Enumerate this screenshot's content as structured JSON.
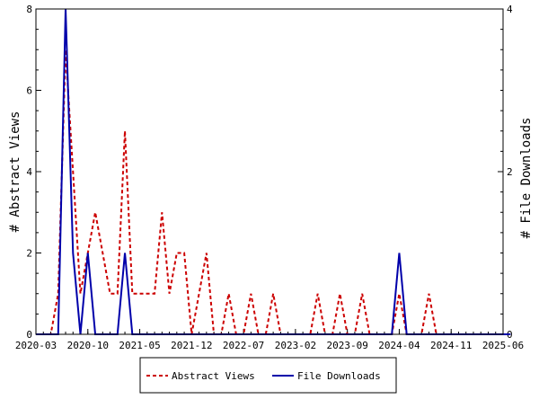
{
  "chart_data": {
    "type": "line",
    "x_tick_labels": [
      "2020-03",
      "2020-10",
      "2021-05",
      "2021-12",
      "2022-07",
      "2023-02",
      "2023-09",
      "2024-04",
      "2024-11",
      "2025-06"
    ],
    "x_start": "2020-03",
    "x_end": "2025-06",
    "left_axis": {
      "label": "# Abstract Views",
      "ylim": [
        0,
        8
      ],
      "ticks": [
        "0",
        "2",
        "4",
        "6",
        "8"
      ]
    },
    "right_axis": {
      "label": "# File Downloads",
      "ylim": [
        0,
        4
      ],
      "ticks": [
        "0",
        "2",
        "4"
      ]
    },
    "grid": false,
    "legend_placement": "bottom-center",
    "series": [
      {
        "name": "Abstract Views",
        "axis": "left",
        "color": "#cc0000",
        "style": "dashed",
        "points": [
          [
            "2020-03",
            0
          ],
          [
            "2020-04",
            0
          ],
          [
            "2020-05",
            0
          ],
          [
            "2020-06",
            1
          ],
          [
            "2020-07",
            7
          ],
          [
            "2020-08",
            4
          ],
          [
            "2020-09",
            1
          ],
          [
            "2020-10",
            2
          ],
          [
            "2020-11",
            3
          ],
          [
            "2020-12",
            2
          ],
          [
            "2021-01",
            1
          ],
          [
            "2021-02",
            1
          ],
          [
            "2021-03",
            5
          ],
          [
            "2021-04",
            1
          ],
          [
            "2021-05",
            1
          ],
          [
            "2021-06",
            1
          ],
          [
            "2021-07",
            1
          ],
          [
            "2021-08",
            3
          ],
          [
            "2021-09",
            1
          ],
          [
            "2021-10",
            2
          ],
          [
            "2021-11",
            2
          ],
          [
            "2021-12",
            0
          ],
          [
            "2022-01",
            1
          ],
          [
            "2022-02",
            2
          ],
          [
            "2022-03",
            0
          ],
          [
            "2022-04",
            0
          ],
          [
            "2022-05",
            1
          ],
          [
            "2022-06",
            0
          ],
          [
            "2022-07",
            0
          ],
          [
            "2022-08",
            1
          ],
          [
            "2022-09",
            0
          ],
          [
            "2022-10",
            0
          ],
          [
            "2022-11",
            1
          ],
          [
            "2022-12",
            0
          ],
          [
            "2023-01",
            0
          ],
          [
            "2023-02",
            0
          ],
          [
            "2023-03",
            0
          ],
          [
            "2023-04",
            0
          ],
          [
            "2023-05",
            1
          ],
          [
            "2023-06",
            0
          ],
          [
            "2023-07",
            0
          ],
          [
            "2023-08",
            1
          ],
          [
            "2023-09",
            0
          ],
          [
            "2023-10",
            0
          ],
          [
            "2023-11",
            1
          ],
          [
            "2023-12",
            0
          ],
          [
            "2024-01",
            0
          ],
          [
            "2024-02",
            0
          ],
          [
            "2024-03",
            0
          ],
          [
            "2024-04",
            1
          ],
          [
            "2024-05",
            0
          ],
          [
            "2024-06",
            0
          ],
          [
            "2024-07",
            0
          ],
          [
            "2024-08",
            1
          ],
          [
            "2024-09",
            0
          ],
          [
            "2024-10",
            0
          ],
          [
            "2024-11",
            0
          ],
          [
            "2024-12",
            0
          ],
          [
            "2025-01",
            0
          ],
          [
            "2025-02",
            0
          ],
          [
            "2025-03",
            0
          ],
          [
            "2025-04",
            0
          ],
          [
            "2025-05",
            0
          ],
          [
            "2025-06",
            0
          ],
          [
            "2025-07",
            0
          ]
        ]
      },
      {
        "name": "File Downloads",
        "axis": "right",
        "color": "#0000aa",
        "style": "solid",
        "points": [
          [
            "2020-03",
            0
          ],
          [
            "2020-04",
            0
          ],
          [
            "2020-05",
            0
          ],
          [
            "2020-06",
            0
          ],
          [
            "2020-07",
            4
          ],
          [
            "2020-08",
            1
          ],
          [
            "2020-09",
            0
          ],
          [
            "2020-10",
            1
          ],
          [
            "2020-11",
            0
          ],
          [
            "2020-12",
            0
          ],
          [
            "2021-01",
            0
          ],
          [
            "2021-02",
            0
          ],
          [
            "2021-03",
            1
          ],
          [
            "2021-04",
            0
          ],
          [
            "2021-05",
            0
          ],
          [
            "2021-06",
            0
          ],
          [
            "2021-07",
            0
          ],
          [
            "2021-08",
            0
          ],
          [
            "2021-09",
            0
          ],
          [
            "2021-10",
            0
          ],
          [
            "2021-11",
            0
          ],
          [
            "2021-12",
            0
          ],
          [
            "2022-01",
            0
          ],
          [
            "2022-02",
            0
          ],
          [
            "2022-03",
            0
          ],
          [
            "2022-04",
            0
          ],
          [
            "2022-05",
            0
          ],
          [
            "2022-06",
            0
          ],
          [
            "2022-07",
            0
          ],
          [
            "2022-08",
            0
          ],
          [
            "2022-09",
            0
          ],
          [
            "2022-10",
            0
          ],
          [
            "2022-11",
            0
          ],
          [
            "2022-12",
            0
          ],
          [
            "2023-01",
            0
          ],
          [
            "2023-02",
            0
          ],
          [
            "2023-03",
            0
          ],
          [
            "2023-04",
            0
          ],
          [
            "2023-05",
            0
          ],
          [
            "2023-06",
            0
          ],
          [
            "2023-07",
            0
          ],
          [
            "2023-08",
            0
          ],
          [
            "2023-09",
            0
          ],
          [
            "2023-10",
            0
          ],
          [
            "2023-11",
            0
          ],
          [
            "2023-12",
            0
          ],
          [
            "2024-01",
            0
          ],
          [
            "2024-02",
            0
          ],
          [
            "2024-03",
            0
          ],
          [
            "2024-04",
            1
          ],
          [
            "2024-05",
            0
          ],
          [
            "2024-06",
            0
          ],
          [
            "2024-07",
            0
          ],
          [
            "2024-08",
            0
          ],
          [
            "2024-09",
            0
          ],
          [
            "2024-10",
            0
          ],
          [
            "2024-11",
            0
          ],
          [
            "2024-12",
            0
          ],
          [
            "2025-01",
            0
          ],
          [
            "2025-02",
            0
          ],
          [
            "2025-03",
            0
          ],
          [
            "2025-04",
            0
          ],
          [
            "2025-05",
            0
          ],
          [
            "2025-06",
            0
          ],
          [
            "2025-07",
            0
          ]
        ]
      }
    ]
  }
}
